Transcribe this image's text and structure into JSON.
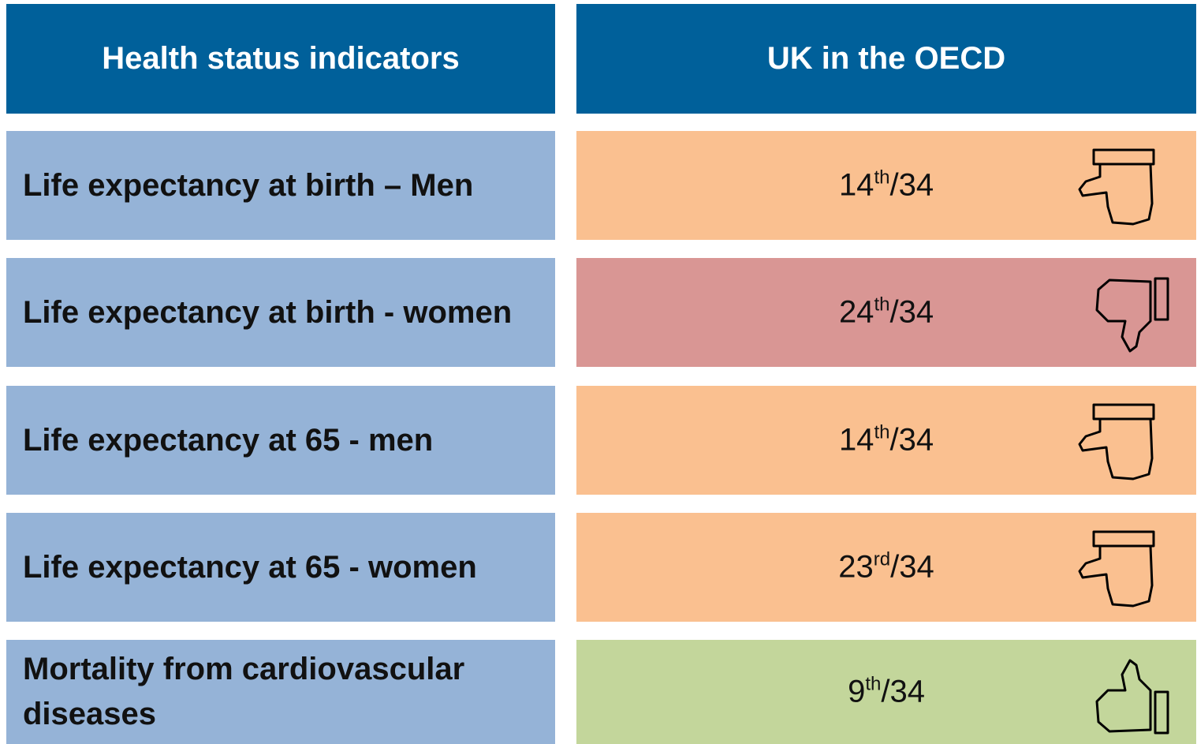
{
  "header": {
    "columns": [
      "Health status indicators",
      "UK in the OECD"
    ]
  },
  "table": {
    "rows": [
      {
        "indicator": "Life expectancy at birth – Men",
        "rank": "14",
        "suffix": "th",
        "total": "/34",
        "color": "#fac090"
      },
      {
        "indicator": "Life expectancy at birth - women",
        "rank": "24",
        "suffix": "th",
        "total": "/34",
        "color": "#d99694"
      },
      {
        "indicator": "Life expectancy at 65 - men",
        "rank": "14",
        "suffix": "th",
        "total": "/34",
        "color": "#fac090"
      },
      {
        "indicator": "Life expectancy at 65 - women",
        "rank": "23",
        "suffix": "rd",
        "total": "/34",
        "color": "#fac090"
      },
      {
        "indicator": "Mortality from cardiovascular diseases",
        "rank": "9",
        "suffix": "th",
        "total": "/34",
        "color": "#c3d69b"
      }
    ]
  }
}
